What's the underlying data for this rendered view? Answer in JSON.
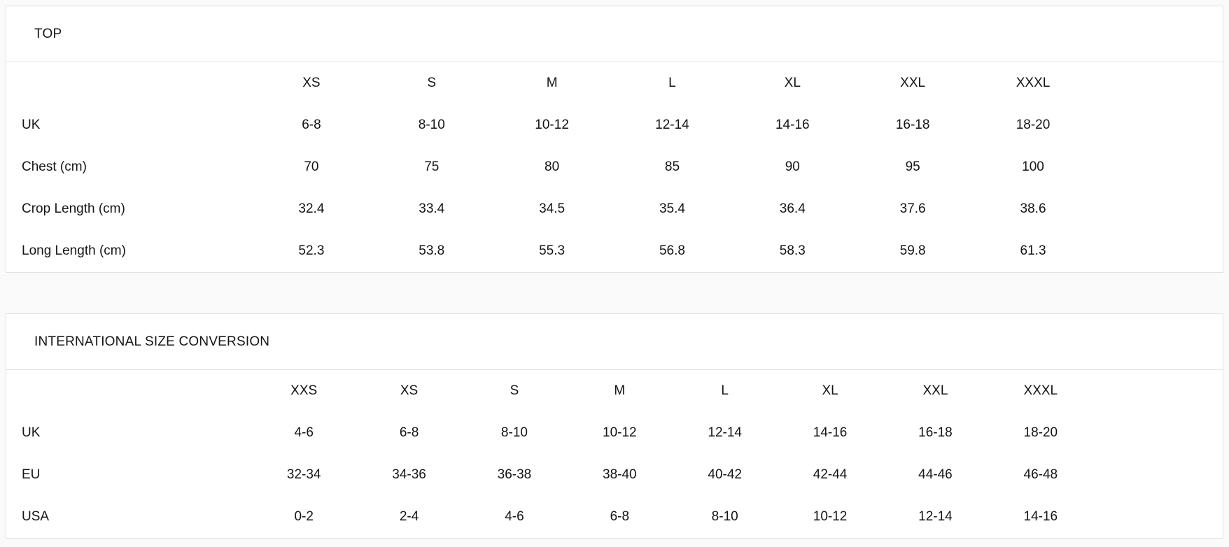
{
  "page": {
    "background_color": "#fafafa",
    "card_background_color": "#ffffff",
    "border_color": "#e2e2e2",
    "text_color": "#151515"
  },
  "tables": [
    {
      "title": "TOP",
      "columns": [
        "XS",
        "S",
        "M",
        "L",
        "XL",
        "XXL",
        "XXXL"
      ],
      "rows": [
        {
          "label": "UK",
          "values": [
            "6-8",
            "8-10",
            "10-12",
            "12-14",
            "14-16",
            "16-18",
            "18-20"
          ]
        },
        {
          "label": "Chest (cm)",
          "values": [
            "70",
            "75",
            "80",
            "85",
            "90",
            "95",
            "100"
          ]
        },
        {
          "label": "Crop Length (cm)",
          "values": [
            "32.4",
            "33.4",
            "34.5",
            "35.4",
            "36.4",
            "37.6",
            "38.6"
          ]
        },
        {
          "label": "Long Length (cm)",
          "values": [
            "52.3",
            "53.8",
            "55.3",
            "56.8",
            "58.3",
            "59.8",
            "61.3"
          ]
        }
      ]
    },
    {
      "title": "INTERNATIONAL SIZE CONVERSION",
      "columns": [
        "XXS",
        "XS",
        "S",
        "M",
        "L",
        "XL",
        "XXL",
        "XXXL"
      ],
      "rows": [
        {
          "label": "UK",
          "values": [
            "4-6",
            "6-8",
            "8-10",
            "10-12",
            "12-14",
            "14-16",
            "16-18",
            "18-20"
          ]
        },
        {
          "label": "EU",
          "values": [
            "32-34",
            "34-36",
            "36-38",
            "38-40",
            "40-42",
            "42-44",
            "44-46",
            "46-48"
          ]
        },
        {
          "label": "USA",
          "values": [
            "0-2",
            "2-4",
            "4-6",
            "6-8",
            "8-10",
            "10-12",
            "12-14",
            "14-16"
          ]
        }
      ]
    }
  ]
}
